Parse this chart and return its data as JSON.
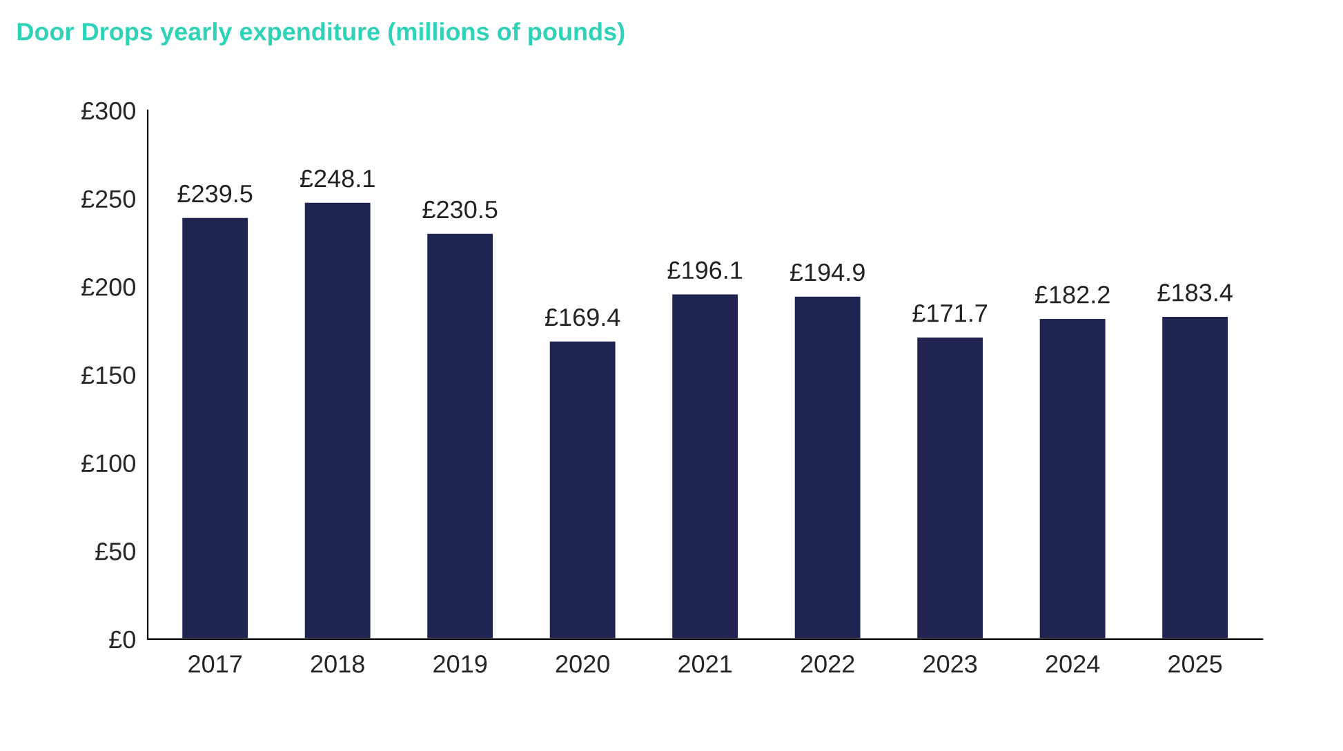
{
  "chart_data": {
    "type": "bar",
    "title": "Door Drops yearly expenditure (millions of pounds)",
    "categories": [
      "2017",
      "2018",
      "2019",
      "2020",
      "2021",
      "2022",
      "2023",
      "2024",
      "2025"
    ],
    "values": [
      239.5,
      248.1,
      230.5,
      169.4,
      196.1,
      194.9,
      171.7,
      182.2,
      183.4
    ],
    "value_labels": [
      "£239.5",
      "£248.1",
      "£230.5",
      "£169.4",
      "£196.1",
      "£194.9",
      "£171.7",
      "£182.2",
      "£183.4"
    ],
    "color": "#1f2451",
    "ylim": [
      0,
      300
    ],
    "yticks": [
      {
        "value": 0,
        "label": "£0"
      },
      {
        "value": 50,
        "label": "£50"
      },
      {
        "value": 100,
        "label": "£100"
      },
      {
        "value": 150,
        "label": "£150"
      },
      {
        "value": 200,
        "label": "£200"
      },
      {
        "value": 250,
        "label": "£250"
      },
      {
        "value": 300,
        "label": "£300"
      }
    ],
    "grid": false,
    "legend": false
  }
}
